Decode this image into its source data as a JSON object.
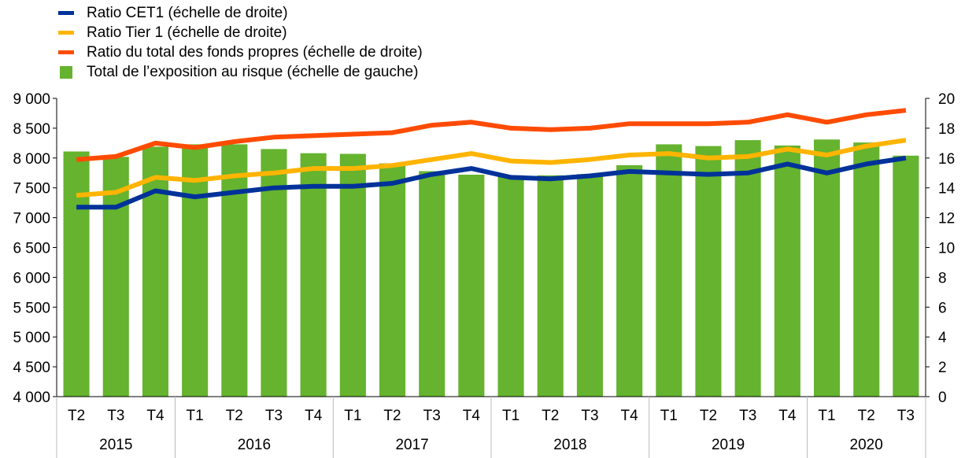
{
  "chart_data": {
    "type": "bar",
    "categories": [
      "T2",
      "T3",
      "T4",
      "T1",
      "T2",
      "T3",
      "T4",
      "T1",
      "T2",
      "T3",
      "T4",
      "T1",
      "T2",
      "T3",
      "T4",
      "T1",
      "T2",
      "T3",
      "T4",
      "T1",
      "T2",
      "T3"
    ],
    "years": [
      {
        "label": "2015",
        "span": 3
      },
      {
        "label": "2016",
        "span": 4
      },
      {
        "label": "2017",
        "span": 4
      },
      {
        "label": "2018",
        "span": 4
      },
      {
        "label": "2019",
        "span": 4
      },
      {
        "label": "2020",
        "span": 3
      }
    ],
    "series": [
      {
        "name": "Total de l’exposition au risque (échelle de gauche)",
        "type": "bar",
        "axis": "left",
        "color": "#65B32E",
        "values": [
          8110,
          8020,
          8190,
          8230,
          8230,
          8150,
          8080,
          8070,
          7910,
          7780,
          7720,
          7710,
          7710,
          7730,
          7880,
          8230,
          8200,
          8300,
          8210,
          8310,
          8260,
          8040
        ]
      },
      {
        "name": "Ratio CET1 (échelle de droite)",
        "type": "line",
        "axis": "right",
        "color": "#003299",
        "values": [
          12.7,
          12.7,
          13.8,
          13.4,
          13.7,
          14.0,
          14.1,
          14.1,
          14.3,
          14.9,
          15.3,
          14.7,
          14.6,
          14.8,
          15.1,
          15.0,
          14.9,
          15.0,
          15.6,
          15.0,
          15.6,
          16.0
        ]
      },
      {
        "name": "Ratio Tier 1 (échelle de droite)",
        "type": "line",
        "axis": "right",
        "color": "#FFB400",
        "values": [
          13.5,
          13.7,
          14.7,
          14.5,
          14.8,
          15.0,
          15.3,
          15.3,
          15.5,
          15.9,
          16.3,
          15.8,
          15.7,
          15.9,
          16.2,
          16.3,
          16.0,
          16.1,
          16.6,
          16.2,
          16.8,
          17.2
        ]
      },
      {
        "name": "Ratio du total des fonds propres (échelle de droite)",
        "type": "line",
        "axis": "right",
        "color": "#FF4B00",
        "values": [
          15.9,
          16.1,
          17.0,
          16.7,
          17.1,
          17.4,
          17.5,
          17.6,
          17.7,
          18.2,
          18.4,
          18.0,
          17.9,
          18.0,
          18.3,
          18.3,
          18.3,
          18.4,
          18.9,
          18.4,
          18.9,
          19.2
        ]
      }
    ],
    "left_axis": {
      "ylim": [
        4000,
        9000
      ],
      "ticks": [
        4000,
        4500,
        5000,
        5500,
        6000,
        6500,
        7000,
        7500,
        8000,
        8500,
        9000
      ]
    },
    "right_axis": {
      "ylim": [
        0,
        20
      ],
      "ticks": [
        0,
        2,
        4,
        6,
        8,
        10,
        12,
        14,
        16,
        18,
        20
      ]
    },
    "legend_position": "top-left",
    "grid": false
  }
}
